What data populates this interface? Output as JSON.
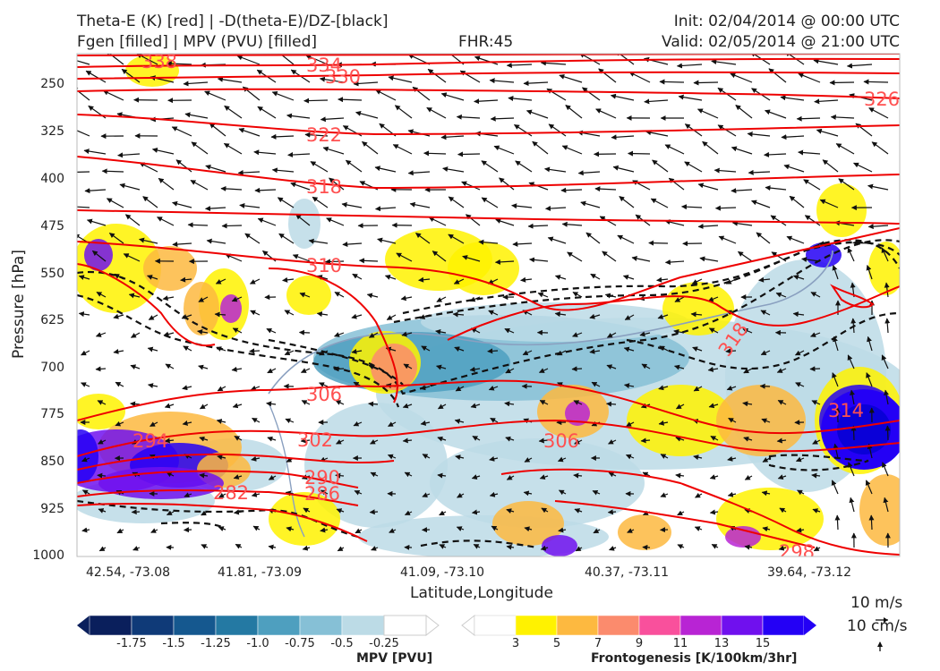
{
  "title": {
    "line1_left": "Theta-E (K) [red] | -D(theta-E)/DZ-[black]",
    "line2_left": "Fgen [filled] | MPV (PVU) [filled]",
    "fhr": "FHR:45",
    "init": "Init: 02/04/2014 @ 00:00 UTC",
    "valid": "Valid: 02/05/2014 @ 21:00 UTC"
  },
  "chart_data": {
    "type": "cross-section",
    "ylabel": "Pressure [hPa]",
    "xlabel": "Latitude,Longitude",
    "y_scale": "inverted",
    "ylim": [
      1000,
      200
    ],
    "yticks": [
      "250",
      "325",
      "400",
      "475",
      "550",
      "625",
      "700",
      "775",
      "850",
      "925",
      "1000"
    ],
    "xticks": [
      "42.54, -73.08",
      "41.81, -73.09",
      "41.09, -73.10",
      "40.37, -73.11",
      "39.64, -73.12"
    ],
    "theta_e_contour_labels": [
      "338",
      "334",
      "330",
      "326",
      "322",
      "318",
      "310",
      "318",
      "306",
      "314",
      "302",
      "294",
      "306",
      "290",
      "286",
      "282",
      "298"
    ],
    "mpv_colorbar": {
      "title": "MPV [PVU]",
      "ticks": [
        "-1.75",
        "-1.5",
        "-1.25",
        "-1.0",
        "-0.75",
        "-0.5",
        "-0.25"
      ],
      "colors": [
        "#0a1f5c",
        "#0f3a78",
        "#15588f",
        "#2479a3",
        "#4e9fbf",
        "#86c0d6",
        "#bcdbe6",
        "#ffffff"
      ]
    },
    "fgen_colorbar": {
      "title": "Frontogenesis [K/100km/3hr]",
      "ticks": [
        "3",
        "5",
        "7",
        "9",
        "11",
        "13",
        "15"
      ],
      "colors": [
        "#ffffff",
        "#fff200",
        "#fdb940",
        "#fb8b6d",
        "#f9509c",
        "#b824d4",
        "#7010ee",
        "#2400f5"
      ]
    },
    "vector_reference": {
      "horizontal": "10 m/s",
      "vertical": "10 cm/s"
    }
  }
}
